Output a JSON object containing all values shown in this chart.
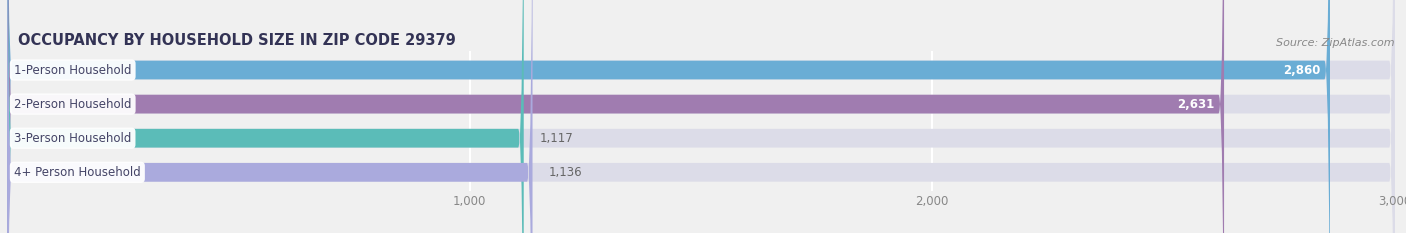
{
  "title": "OCCUPANCY BY HOUSEHOLD SIZE IN ZIP CODE 29379",
  "source_text": "Source: ZipAtlas.com",
  "categories": [
    "1-Person Household",
    "2-Person Household",
    "3-Person Household",
    "4+ Person Household"
  ],
  "values": [
    2860,
    2631,
    1117,
    1136
  ],
  "bar_colors": [
    "#6aadd5",
    "#a07cb0",
    "#5bbcb8",
    "#aaaadd"
  ],
  "background_color": "#f0f0f0",
  "bar_background_color": "#dcdce8",
  "xlim": [
    0,
    3000
  ],
  "xticks": [
    1000,
    2000,
    3000
  ],
  "title_fontsize": 10.5,
  "label_fontsize": 8.5,
  "value_fontsize": 8.5,
  "source_fontsize": 8,
  "value_threshold": 2000
}
